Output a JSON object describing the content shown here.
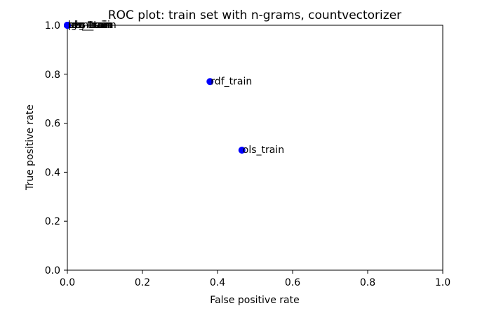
{
  "chart_data": {
    "type": "scatter",
    "title": "ROC plot: train set with n-grams, countvectorizer",
    "xlabel": "False positive rate",
    "ylabel": "True positive rate",
    "xlim": [
      0.0,
      1.0
    ],
    "ylim": [
      0.0,
      1.0
    ],
    "x_ticks": [
      "0.0",
      "0.2",
      "0.4",
      "0.6",
      "0.8",
      "1.0"
    ],
    "y_ticks": [
      "0.0",
      "0.2",
      "0.4",
      "0.6",
      "0.8",
      "1.0"
    ],
    "grid": false,
    "legend": "none",
    "marker_color": "#0000ff",
    "points": [
      {
        "label": "rdf_train",
        "x": 0.38,
        "y": 0.77
      },
      {
        "label": "ols_train",
        "x": 0.465,
        "y": 0.49
      },
      {
        "label": "lgs_train",
        "x": 0.0,
        "y": 1.0
      },
      {
        "label": "svm_train",
        "x": 0.0,
        "y": 1.0
      },
      {
        "label": "nbs_train",
        "x": 0.0,
        "y": 1.0
      },
      {
        "label": "prc_train",
        "x": 0.0,
        "y": 1.0
      },
      {
        "label": "rdg_train",
        "x": 0.0,
        "y": 1.0
      }
    ]
  }
}
